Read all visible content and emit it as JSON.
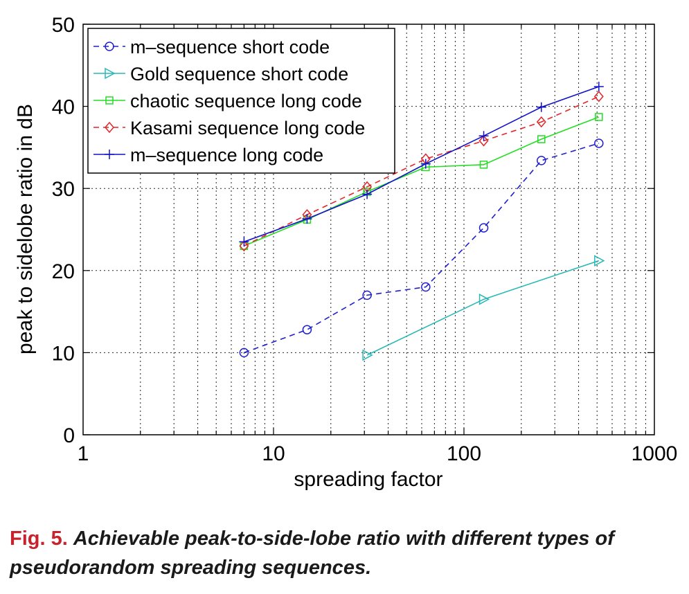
{
  "chart_data": {
    "type": "line",
    "title": "",
    "xlabel": "spreading factor",
    "ylabel": "peak to sidelobe ratio in dB",
    "xscale": "log",
    "xlim": [
      1,
      1000
    ],
    "ylim": [
      0,
      50
    ],
    "xticks": [
      1,
      10,
      100,
      1000
    ],
    "xtick_labels": [
      "1",
      "10",
      "100",
      "1000"
    ],
    "yticks": [
      0,
      10,
      20,
      30,
      40,
      50
    ],
    "ytick_labels": [
      "0",
      "10",
      "20",
      "30",
      "40",
      "50"
    ],
    "grid": true,
    "legend_position": "top-left",
    "series": [
      {
        "name": "m–sequence short code",
        "color": "#1f1fd0",
        "dash": "dashed",
        "marker": "circle",
        "x": [
          7,
          15,
          31,
          63,
          127,
          255,
          511
        ],
        "values": [
          10,
          12.8,
          17,
          18,
          25.2,
          33.4,
          35.5
        ]
      },
      {
        "name": "Gold sequence short code",
        "color": "#2ab7b7",
        "dash": "solid",
        "marker": "triangle-right",
        "x": [
          31,
          127,
          511
        ],
        "values": [
          9.7,
          16.5,
          21.2
        ]
      },
      {
        "name": "chaotic sequence long code",
        "color": "#22dd22",
        "dash": "solid",
        "marker": "square",
        "x": [
          7,
          15,
          31,
          63,
          127,
          255,
          511
        ],
        "values": [
          23,
          26.2,
          29.6,
          32.6,
          32.9,
          36,
          38.7
        ]
      },
      {
        "name": "Kasami sequence long code",
        "color": "#e0262a",
        "dash": "dashed",
        "marker": "diamond",
        "x": [
          7,
          15,
          31,
          63,
          127,
          255,
          511
        ],
        "values": [
          23,
          26.8,
          30.2,
          33.6,
          35.8,
          38.1,
          41.2
        ]
      },
      {
        "name": "m–sequence long code",
        "color": "#1111c8",
        "dash": "solid",
        "marker": "plus",
        "x": [
          7,
          15,
          31,
          63,
          127,
          255,
          511
        ],
        "values": [
          23.5,
          26.3,
          29.3,
          33,
          36.4,
          39.9,
          42.4
        ]
      }
    ]
  },
  "caption": {
    "label": "Fig. 5.",
    "text": "Achievable peak-to-side-lobe ratio with different types of pseudorandom spreading sequences."
  }
}
